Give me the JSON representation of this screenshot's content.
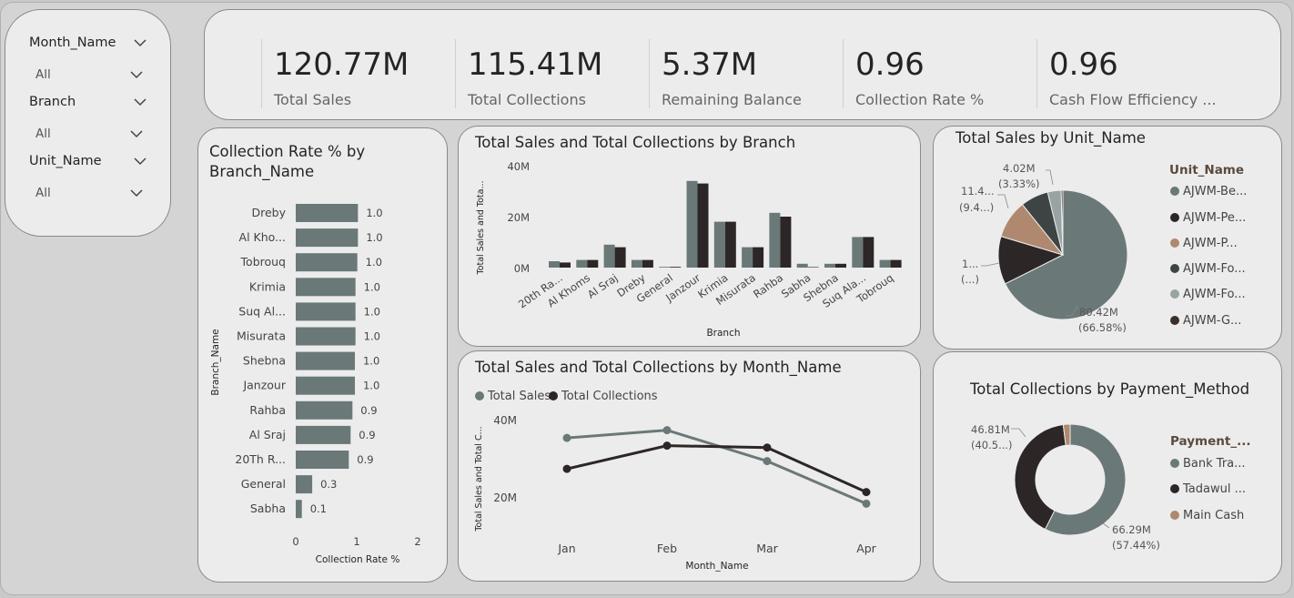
{
  "slicers": [
    {
      "label": "Month_Name",
      "value": "All"
    },
    {
      "label": "Branch",
      "value": "All"
    },
    {
      "label": "Unit_Name",
      "value": "All"
    }
  ],
  "kpis": [
    {
      "value": "120.77M",
      "label": "Total Sales"
    },
    {
      "value": "115.41M",
      "label": "Total Collections"
    },
    {
      "value": "5.37M",
      "label": "Remaining Balance"
    },
    {
      "value": "0.96",
      "label": "Collection Rate %"
    },
    {
      "value": "0.96",
      "label": "Cash Flow Efficiency ..."
    }
  ],
  "colors": {
    "sales": "#6b7878",
    "collections": "#2d2626",
    "tan": "#b08870",
    "gray2": "#8e9898"
  },
  "collection_rate": {
    "title_line1": "Collection Rate % by",
    "title_line2": "Branch_Name",
    "ylabel": "Branch_Name",
    "xlabel": "Collection Rate %",
    "xticks": [
      "0",
      "1",
      "2"
    ]
  },
  "branch_chart": {
    "title": "Total Sales and Total Collections by Branch",
    "ylabel": "Total Sales and Tota...",
    "xlabel": "Branch",
    "yticks": [
      "40M",
      "20M",
      "0M"
    ]
  },
  "month_chart": {
    "title": "Total Sales and Total Collections by Month_Name",
    "ylabel": "Total Sales and Total C...",
    "xlabel": "Month_Name",
    "yticks": [
      "40M",
      "20M"
    ],
    "legend": [
      "Total Sales",
      "Total Collections"
    ]
  },
  "unit_chart": {
    "title": "Total Sales by Unit_Name",
    "legend_title": "Unit_Name",
    "legend": [
      "AJWM-Be...",
      "AJWM-Pe...",
      "AJWM-P...",
      "AJWM-Fo...",
      "AJWM-Fo...",
      "AJWM-G..."
    ],
    "labels": {
      "a_value": "4.02M",
      "a_pct": "(3.33%)",
      "b_value": "11.4...",
      "b_pct": "(9.4...)",
      "c_value": "1...",
      "c_pct": "(...)",
      "d_value": "80.42M",
      "d_pct": "(66.58%)"
    }
  },
  "payment_chart": {
    "title": "Total Collections by Payment_Method",
    "legend_title": "Payment_...",
    "legend": [
      "Bank Tra...",
      "Tadawul ...",
      "Main Cash"
    ],
    "labels": {
      "a_value": "46.81M",
      "a_pct": "(40.5...)",
      "b_value": "66.29M",
      "b_pct": "(57.44%)"
    }
  },
  "chart_data": [
    {
      "type": "bar",
      "title": "Collection Rate % by Branch_Name",
      "xlabel": "Collection Rate %",
      "ylabel": "Branch_Name",
      "categories": [
        "Dreby",
        "Al Kho...",
        "Tobrouq",
        "Krimia",
        "Suq Al...",
        "Misurata",
        "Shebna",
        "Janzour",
        "Rahba",
        "Al Sraj",
        "20Th R...",
        "General",
        "Sabha"
      ],
      "values": [
        1.02,
        1.02,
        1.01,
        0.98,
        0.98,
        0.98,
        0.97,
        0.97,
        0.93,
        0.9,
        0.87,
        0.27,
        0.1
      ],
      "data_labels": [
        "1.0",
        "1.0",
        "1.0",
        "1.0",
        "1.0",
        "1.0",
        "1.0",
        "1.0",
        "0.9",
        "0.9",
        "0.9",
        "0.3",
        "0.1"
      ],
      "xlim": [
        0,
        2
      ]
    },
    {
      "type": "bar",
      "title": "Total Sales and Total Collections by Branch",
      "xlabel": "Branch",
      "ylabel": "Total Sales and Tota...",
      "categories": [
        "20th Ra...",
        "Al Khoms",
        "Al Sraj",
        "Dreby",
        "General",
        "Janzour",
        "Krimia",
        "Misurata",
        "Rahba",
        "Sabha",
        "Shebna",
        "Suq Ala...",
        "Tobrouq"
      ],
      "series": [
        {
          "name": "Total Sales",
          "values": [
            2.5,
            3,
            9,
            3,
            0.3,
            34,
            18,
            8,
            21.5,
            1.5,
            1.5,
            12,
            3
          ]
        },
        {
          "name": "Total Collections",
          "values": [
            2,
            3,
            8,
            3,
            0.3,
            33,
            18,
            8,
            20,
            0.2,
            1.5,
            12,
            3
          ]
        }
      ],
      "ylim": [
        0,
        45
      ]
    },
    {
      "type": "line",
      "title": "Total Sales and Total Collections by Month_Name",
      "xlabel": "Month_Name",
      "ylabel": "Total Sales and Total C...",
      "categories": [
        "Jan",
        "Feb",
        "Mar",
        "Apr"
      ],
      "series": [
        {
          "name": "Total Sales",
          "values": [
            35.5,
            37.5,
            29.5,
            18.5
          ]
        },
        {
          "name": "Total Collections",
          "values": [
            27.5,
            33.5,
            33,
            21.5
          ]
        }
      ],
      "ylim": [
        10,
        45
      ]
    },
    {
      "type": "pie",
      "title": "Total Sales by Unit_Name",
      "categories": [
        "AJWM-Be...",
        "AJWM-Pe...",
        "AJWM-P...",
        "AJWM-Fo...",
        "AJWM-Fo...",
        "AJWM-G..."
      ],
      "values": [
        80.42,
        14.3,
        11.4,
        8.3,
        4.02,
        0.5
      ]
    },
    {
      "type": "pie",
      "title": "Total Collections by Payment_Method",
      "categories": [
        "Bank Tra...",
        "Tadawul ...",
        "Main Cash"
      ],
      "values": [
        66.29,
        46.81,
        2.31
      ]
    }
  ]
}
